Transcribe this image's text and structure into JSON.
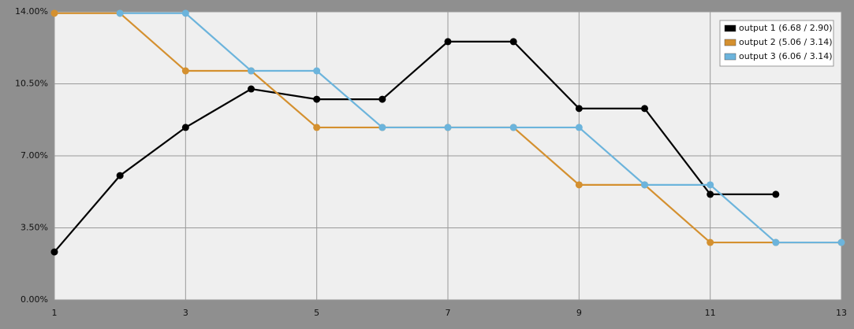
{
  "chart_data": {
    "type": "line",
    "x": [
      1,
      2,
      3,
      4,
      5,
      6,
      7,
      8,
      9,
      10,
      11,
      12,
      13
    ],
    "xlim": [
      1,
      13
    ],
    "xticks": [
      1,
      3,
      5,
      7,
      9,
      11,
      13
    ],
    "ylim": [
      0,
      14
    ],
    "yticks": [
      {
        "value": 0,
        "label": "0.00%"
      },
      {
        "value": 3.5,
        "label": "3.50%"
      },
      {
        "value": 7,
        "label": "7.00%"
      },
      {
        "value": 10.5,
        "label": "10.50%"
      },
      {
        "value": 14,
        "label": "14.00%"
      }
    ],
    "grid": true,
    "legend": "top-right",
    "series": [
      {
        "name": "output 1 (6.68 / 2.90)",
        "color": "#000000",
        "values": [
          2.33,
          6.04,
          8.38,
          10.25,
          9.75,
          9.75,
          12.55,
          12.55,
          9.3,
          9.3,
          5.13,
          5.13,
          null
        ]
      },
      {
        "name": "output 2 (5.06 / 3.14)",
        "color": "#d4902f",
        "values": [
          13.93,
          13.93,
          11.13,
          11.13,
          8.38,
          8.38,
          8.38,
          8.38,
          5.59,
          5.59,
          2.79,
          2.79,
          2.79
        ]
      },
      {
        "name": "output 3 (6.06 / 3.14)",
        "color": "#6cb4dc",
        "values": [
          null,
          13.93,
          13.93,
          11.13,
          11.13,
          8.38,
          8.38,
          8.38,
          8.38,
          5.59,
          5.59,
          2.79,
          2.79
        ]
      }
    ]
  }
}
